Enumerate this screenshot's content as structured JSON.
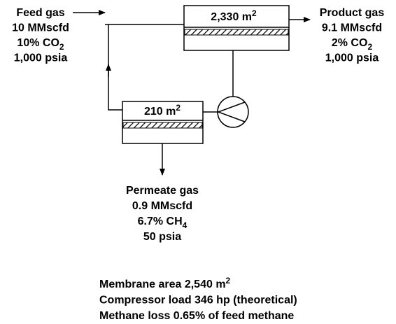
{
  "feed": {
    "lines": [
      {
        "text": "Feed gas"
      },
      {
        "text": "10 MMscfd"
      },
      {
        "text": "10% CO",
        "sub": "2"
      },
      {
        "text": "1,000 psia"
      }
    ]
  },
  "membrane_1": {
    "label": {
      "text": "2,330 m",
      "sup": "2"
    }
  },
  "membrane_2": {
    "label": {
      "text": "210 m",
      "sup": "2"
    }
  },
  "product": {
    "lines": [
      {
        "text": "Product gas"
      },
      {
        "text": "9.1 MMscfd"
      },
      {
        "text": "2% CO",
        "sub": "2"
      },
      {
        "text": "1,000 psia"
      }
    ]
  },
  "permeate": {
    "lines": [
      {
        "text": "Permeate gas"
      },
      {
        "text": "0.9 MMscfd"
      },
      {
        "text": "6.7% CH",
        "sub": "4"
      },
      {
        "text": "50 psia"
      }
    ]
  },
  "summary": {
    "lines": [
      {
        "text": "Membrane area 2,540 m",
        "sup": "2"
      },
      {
        "text": "Compressor load 346 hp (theoretical)"
      },
      {
        "text": "Methane loss 0.65% of feed methane"
      }
    ]
  }
}
